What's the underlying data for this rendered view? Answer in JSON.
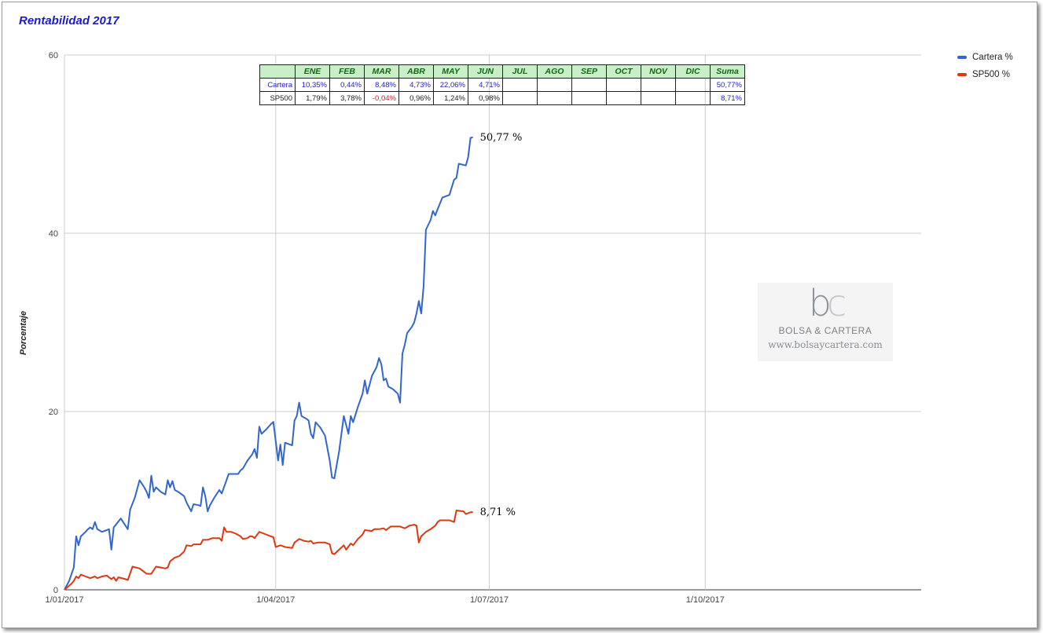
{
  "title": "Rentabilidad 2017",
  "chart_data": {
    "type": "line",
    "ylabel": "Porcentaje",
    "ylim": [
      0,
      60
    ],
    "yticks": [
      0,
      20,
      40,
      60
    ],
    "xticks": [
      "1/01/2017",
      "1/04/2017",
      "1/07/2017",
      "1/10/2017"
    ],
    "grid": true,
    "legend_position": "right",
    "series": [
      {
        "name": "Cartera %",
        "color": "#3366cc",
        "end_label": "50,77 %",
        "points": [
          [
            "2017-01-01",
            0.0
          ],
          [
            "2017-01-03",
            1.0
          ],
          [
            "2017-01-05",
            2.5
          ],
          [
            "2017-01-06",
            6.0
          ],
          [
            "2017-01-07",
            5.0
          ],
          [
            "2017-01-08",
            6.0
          ],
          [
            "2017-01-10",
            6.5
          ],
          [
            "2017-01-11",
            6.8
          ],
          [
            "2017-01-12",
            7.0
          ],
          [
            "2017-01-13",
            6.8
          ],
          [
            "2017-01-14",
            7.6
          ],
          [
            "2017-01-15",
            6.8
          ],
          [
            "2017-01-17",
            6.5
          ],
          [
            "2017-01-19",
            6.7
          ],
          [
            "2017-01-20",
            6.8
          ],
          [
            "2017-01-21",
            4.5
          ],
          [
            "2017-01-22",
            7.0
          ],
          [
            "2017-01-25",
            8.0
          ],
          [
            "2017-01-28",
            6.8
          ],
          [
            "2017-01-29",
            9.0
          ],
          [
            "2017-01-31",
            10.35
          ],
          [
            "2017-02-02",
            12.3
          ],
          [
            "2017-02-04",
            11.5
          ],
          [
            "2017-02-05",
            11.0
          ],
          [
            "2017-02-06",
            10.3
          ],
          [
            "2017-02-07",
            12.8
          ],
          [
            "2017-02-08",
            11.0
          ],
          [
            "2017-02-09",
            11.5
          ],
          [
            "2017-02-11",
            11.0
          ],
          [
            "2017-02-13",
            10.7
          ],
          [
            "2017-02-14",
            12.3
          ],
          [
            "2017-02-15",
            11.5
          ],
          [
            "2017-02-16",
            12.2
          ],
          [
            "2017-02-17",
            11.2
          ],
          [
            "2017-02-19",
            10.9
          ],
          [
            "2017-02-21",
            10.5
          ],
          [
            "2017-02-22",
            9.8
          ],
          [
            "2017-02-24",
            8.8
          ],
          [
            "2017-02-25",
            9.6
          ],
          [
            "2017-02-27",
            9.5
          ],
          [
            "2017-02-28",
            9.4
          ],
          [
            "2017-03-01",
            11.5
          ],
          [
            "2017-03-02",
            10.5
          ],
          [
            "2017-03-03",
            8.8
          ],
          [
            "2017-03-04",
            9.5
          ],
          [
            "2017-03-06",
            10.4
          ],
          [
            "2017-03-08",
            11.2
          ],
          [
            "2017-03-09",
            10.8
          ],
          [
            "2017-03-12",
            13.0
          ],
          [
            "2017-03-15",
            13.0
          ],
          [
            "2017-03-16",
            13.0
          ],
          [
            "2017-03-17",
            13.4
          ],
          [
            "2017-03-18",
            13.6
          ],
          [
            "2017-03-20",
            14.5
          ],
          [
            "2017-03-22",
            15.2
          ],
          [
            "2017-03-23",
            15.8
          ],
          [
            "2017-03-24",
            14.8
          ],
          [
            "2017-03-25",
            18.3
          ],
          [
            "2017-03-26",
            17.5
          ],
          [
            "2017-03-28",
            18.0
          ],
          [
            "2017-03-30",
            18.6
          ],
          [
            "2017-03-31",
            18.84
          ],
          [
            "2017-04-02",
            14.5
          ],
          [
            "2017-04-03",
            16.3
          ],
          [
            "2017-04-04",
            14.0
          ],
          [
            "2017-04-05",
            16.5
          ],
          [
            "2017-04-08",
            16.2
          ],
          [
            "2017-04-09",
            19.0
          ],
          [
            "2017-04-10",
            19.5
          ],
          [
            "2017-04-11",
            21.0
          ],
          [
            "2017-04-12",
            19.5
          ],
          [
            "2017-04-14",
            19.2
          ],
          [
            "2017-04-15",
            19.0
          ],
          [
            "2017-04-16",
            17.5
          ],
          [
            "2017-04-17",
            17.0
          ],
          [
            "2017-04-18",
            18.8
          ],
          [
            "2017-04-20",
            18.2
          ],
          [
            "2017-04-22",
            17.3
          ],
          [
            "2017-04-24",
            14.5
          ],
          [
            "2017-04-25",
            12.6
          ],
          [
            "2017-04-26",
            12.5
          ],
          [
            "2017-04-28",
            15.5
          ],
          [
            "2017-04-29",
            17.5
          ],
          [
            "2017-04-30",
            19.5
          ],
          [
            "2017-05-01",
            18.5
          ],
          [
            "2017-05-02",
            17.5
          ],
          [
            "2017-05-03",
            19.5
          ],
          [
            "2017-05-04",
            18.8
          ],
          [
            "2017-05-06",
            20.5
          ],
          [
            "2017-05-08",
            22.0
          ],
          [
            "2017-05-09",
            23.5
          ],
          [
            "2017-05-10",
            22.0
          ],
          [
            "2017-05-12",
            24.0
          ],
          [
            "2017-05-14",
            25.0
          ],
          [
            "2017-05-15",
            26.0
          ],
          [
            "2017-05-16",
            25.3
          ],
          [
            "2017-05-17",
            23.5
          ],
          [
            "2017-05-18",
            23.7
          ],
          [
            "2017-05-19",
            22.8
          ],
          [
            "2017-05-21",
            22.5
          ],
          [
            "2017-05-23",
            22.0
          ],
          [
            "2017-05-24",
            21.0
          ],
          [
            "2017-05-25",
            26.5
          ],
          [
            "2017-05-26",
            27.5
          ],
          [
            "2017-05-27",
            28.8
          ],
          [
            "2017-05-29",
            29.5
          ],
          [
            "2017-05-30",
            30.0
          ],
          [
            "2017-05-31",
            31.0
          ],
          [
            "2017-06-01",
            32.4
          ],
          [
            "2017-06-02",
            31.0
          ],
          [
            "2017-06-03",
            34.0
          ],
          [
            "2017-06-04",
            40.4
          ],
          [
            "2017-06-06",
            41.5
          ],
          [
            "2017-06-07",
            42.5
          ],
          [
            "2017-06-08",
            42.0
          ],
          [
            "2017-06-09",
            42.7
          ],
          [
            "2017-06-11",
            44.0
          ],
          [
            "2017-06-14",
            44.3
          ],
          [
            "2017-06-16",
            46.0
          ],
          [
            "2017-06-17",
            46.2
          ],
          [
            "2017-06-18",
            47.8
          ],
          [
            "2017-06-21",
            47.6
          ],
          [
            "2017-06-22",
            48.5
          ],
          [
            "2017-06-23",
            50.7
          ],
          [
            "2017-06-24",
            50.77
          ]
        ]
      },
      {
        "name": "SP500 %",
        "color": "#dc3912",
        "end_label": "8,71 %",
        "points": [
          [
            "2017-01-01",
            0.0
          ],
          [
            "2017-01-04",
            0.7
          ],
          [
            "2017-01-05",
            1.0
          ],
          [
            "2017-01-06",
            1.5
          ],
          [
            "2017-01-07",
            1.3
          ],
          [
            "2017-01-08",
            1.7
          ],
          [
            "2017-01-10",
            1.5
          ],
          [
            "2017-01-12",
            1.3
          ],
          [
            "2017-01-14",
            1.5
          ],
          [
            "2017-01-15",
            1.3
          ],
          [
            "2017-01-17",
            1.5
          ],
          [
            "2017-01-19",
            1.6
          ],
          [
            "2017-01-21",
            1.2
          ],
          [
            "2017-01-22",
            1.4
          ],
          [
            "2017-01-23",
            1.0
          ],
          [
            "2017-01-24",
            1.4
          ],
          [
            "2017-01-27",
            1.2
          ],
          [
            "2017-01-28",
            1.1
          ],
          [
            "2017-01-30",
            2.6
          ],
          [
            "2017-02-02",
            2.4
          ],
          [
            "2017-02-04",
            2.0
          ],
          [
            "2017-02-05",
            1.8
          ],
          [
            "2017-02-07",
            1.8
          ],
          [
            "2017-02-09",
            2.6
          ],
          [
            "2017-02-11",
            2.5
          ],
          [
            "2017-02-13",
            2.4
          ],
          [
            "2017-02-14",
            2.5
          ],
          [
            "2017-02-15",
            3.2
          ],
          [
            "2017-02-17",
            3.6
          ],
          [
            "2017-02-19",
            3.8
          ],
          [
            "2017-02-21",
            4.3
          ],
          [
            "2017-02-22",
            5.0
          ],
          [
            "2017-02-24",
            4.9
          ],
          [
            "2017-02-25",
            5.1
          ],
          [
            "2017-02-28",
            5.1
          ],
          [
            "2017-03-01",
            5.6
          ],
          [
            "2017-03-03",
            5.6
          ],
          [
            "2017-03-05",
            5.8
          ],
          [
            "2017-03-08",
            5.8
          ],
          [
            "2017-03-09",
            5.5
          ],
          [
            "2017-03-10",
            7.0
          ],
          [
            "2017-03-11",
            6.5
          ],
          [
            "2017-03-13",
            6.5
          ],
          [
            "2017-03-15",
            6.3
          ],
          [
            "2017-03-17",
            6.0
          ],
          [
            "2017-03-18",
            5.7
          ],
          [
            "2017-03-20",
            5.8
          ],
          [
            "2017-03-21",
            6.0
          ],
          [
            "2017-03-22",
            6.0
          ],
          [
            "2017-03-23",
            5.8
          ],
          [
            "2017-03-25",
            6.5
          ],
          [
            "2017-03-27",
            6.3
          ],
          [
            "2017-03-29",
            6.1
          ],
          [
            "2017-03-31",
            5.9
          ],
          [
            "2017-04-01",
            4.8
          ],
          [
            "2017-04-03",
            5.0
          ],
          [
            "2017-04-05",
            4.8
          ],
          [
            "2017-04-08",
            4.7
          ],
          [
            "2017-04-09",
            5.3
          ],
          [
            "2017-04-11",
            5.7
          ],
          [
            "2017-04-13",
            5.5
          ],
          [
            "2017-04-15",
            5.4
          ],
          [
            "2017-04-16",
            5.5
          ],
          [
            "2017-04-17",
            5.2
          ],
          [
            "2017-04-19",
            5.3
          ],
          [
            "2017-04-21",
            5.3
          ],
          [
            "2017-04-22",
            5.3
          ],
          [
            "2017-04-24",
            5.1
          ],
          [
            "2017-04-25",
            4.1
          ],
          [
            "2017-04-26",
            4.0
          ],
          [
            "2017-04-28",
            4.5
          ],
          [
            "2017-04-30",
            5.0
          ],
          [
            "2017-05-01",
            4.5
          ],
          [
            "2017-05-03",
            5.2
          ],
          [
            "2017-05-04",
            5.0
          ],
          [
            "2017-05-06",
            5.7
          ],
          [
            "2017-05-08",
            6.2
          ],
          [
            "2017-05-09",
            6.7
          ],
          [
            "2017-05-12",
            6.6
          ],
          [
            "2017-05-13",
            6.8
          ],
          [
            "2017-05-15",
            6.8
          ],
          [
            "2017-05-17",
            6.9
          ],
          [
            "2017-05-18",
            6.7
          ],
          [
            "2017-05-20",
            7.1
          ],
          [
            "2017-05-22",
            7.1
          ],
          [
            "2017-05-24",
            7.1
          ],
          [
            "2017-05-26",
            6.9
          ],
          [
            "2017-05-28",
            7.2
          ],
          [
            "2017-05-30",
            7.3
          ],
          [
            "2017-05-31",
            7.2
          ],
          [
            "2017-06-01",
            5.3
          ],
          [
            "2017-06-02",
            6.0
          ],
          [
            "2017-06-04",
            6.5
          ],
          [
            "2017-06-06",
            6.8
          ],
          [
            "2017-06-08",
            7.2
          ],
          [
            "2017-06-09",
            7.6
          ],
          [
            "2017-06-10",
            7.8
          ],
          [
            "2017-06-14",
            7.8
          ],
          [
            "2017-06-16",
            7.6
          ],
          [
            "2017-06-17",
            8.9
          ],
          [
            "2017-06-20",
            8.8
          ],
          [
            "2017-06-21",
            8.5
          ],
          [
            "2017-06-23",
            8.7
          ],
          [
            "2017-06-24",
            8.71
          ]
        ]
      }
    ]
  },
  "summary_table": {
    "months": [
      "ENE",
      "FEB",
      "MAR",
      "ABR",
      "MAY",
      "JUN",
      "JUL",
      "AGO",
      "SEP",
      "OCT",
      "NOV",
      "DIC"
    ],
    "total_label": "Suma",
    "rows": [
      {
        "label": "Cartera",
        "color": "#2222cc",
        "values": [
          "10,35%",
          "0,44%",
          "8,48%",
          "4,73%",
          "22,06%",
          "4,71%",
          "",
          "",
          "",
          "",
          "",
          ""
        ],
        "total": "50,77%"
      },
      {
        "label": "SP500",
        "color": "#222222",
        "values": [
          "1,79%",
          "3,78%",
          "-0,04%",
          "0,96%",
          "1,24%",
          "0,98%",
          "",
          "",
          "",
          "",
          "",
          ""
        ],
        "total": "8,71%"
      }
    ],
    "negative_color": "#cc2222",
    "total_color": "#2222cc"
  },
  "watermark": {
    "logo_b": "b",
    "logo_c": "c",
    "name": "BOLSA & CARTERA",
    "url": "www.bolsaycartera.com"
  }
}
